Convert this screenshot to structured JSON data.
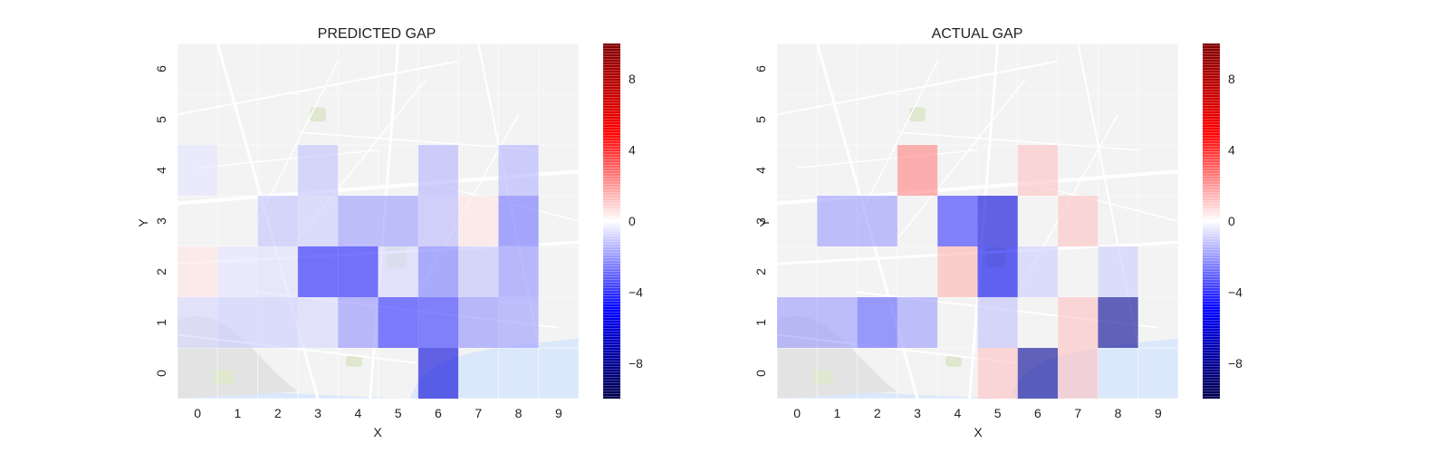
{
  "chart_data": [
    {
      "type": "heatmap",
      "title": "PREDICTED GAP",
      "xlabel": "X",
      "ylabel": "Y",
      "x_ticks": [
        "0",
        "1",
        "2",
        "3",
        "4",
        "5",
        "6",
        "7",
        "8",
        "9"
      ],
      "y_ticks": [
        "0",
        "1",
        "2",
        "3",
        "4",
        "5",
        "6"
      ],
      "xlim": [
        -0.5,
        9.5
      ],
      "ylim": [
        -0.5,
        6.5
      ],
      "background": "street map",
      "colormap": "seismic",
      "colorbar_ticks": [
        "−8",
        "−4",
        "0",
        "4",
        "8"
      ],
      "clim": [
        -10,
        10
      ],
      "cells": [
        {
          "x": 0,
          "y": 1,
          "value": -0.8
        },
        {
          "x": 1,
          "y": 1,
          "value": -1.0
        },
        {
          "x": 2,
          "y": 1,
          "value": -1.0
        },
        {
          "x": 3,
          "y": 1,
          "value": -0.8
        },
        {
          "x": 4,
          "y": 1,
          "value": -2.2
        },
        {
          "x": 5,
          "y": 1,
          "value": -4.2
        },
        {
          "x": 6,
          "y": 1,
          "value": -4.0
        },
        {
          "x": 7,
          "y": 1,
          "value": -2.2
        },
        {
          "x": 8,
          "y": 1,
          "value": -2.0
        },
        {
          "x": 6,
          "y": 0,
          "value": -6.0
        },
        {
          "x": 0,
          "y": 2,
          "value": 0.5
        },
        {
          "x": 1,
          "y": 2,
          "value": -0.5
        },
        {
          "x": 2,
          "y": 2,
          "value": -0.6
        },
        {
          "x": 3,
          "y": 2,
          "value": -4.5
        },
        {
          "x": 4,
          "y": 2,
          "value": -4.5
        },
        {
          "x": 5,
          "y": 2,
          "value": -0.8
        },
        {
          "x": 6,
          "y": 2,
          "value": -2.6
        },
        {
          "x": 7,
          "y": 2,
          "value": -1.2
        },
        {
          "x": 8,
          "y": 2,
          "value": -2.2
        },
        {
          "x": 2,
          "y": 3,
          "value": -1.2
        },
        {
          "x": 3,
          "y": 3,
          "value": -1.0
        },
        {
          "x": 4,
          "y": 3,
          "value": -2.0
        },
        {
          "x": 5,
          "y": 3,
          "value": -2.0
        },
        {
          "x": 6,
          "y": 3,
          "value": -1.4
        },
        {
          "x": 7,
          "y": 3,
          "value": 0.5
        },
        {
          "x": 8,
          "y": 3,
          "value": -2.8
        },
        {
          "x": 0,
          "y": 4,
          "value": -0.5
        },
        {
          "x": 3,
          "y": 4,
          "value": -1.2
        },
        {
          "x": 6,
          "y": 4,
          "value": -1.5
        },
        {
          "x": 8,
          "y": 4,
          "value": -1.5
        }
      ]
    },
    {
      "type": "heatmap",
      "title": "ACTUAL GAP",
      "xlabel": "X",
      "ylabel": "Y",
      "x_ticks": [
        "0",
        "1",
        "2",
        "3",
        "4",
        "5",
        "6",
        "7",
        "8",
        "9"
      ],
      "y_ticks": [
        "0",
        "1",
        "2",
        "3",
        "4",
        "5",
        "6"
      ],
      "xlim": [
        -0.5,
        9.5
      ],
      "ylim": [
        -0.5,
        6.5
      ],
      "background": "street map",
      "colormap": "seismic",
      "colorbar_ticks": [
        "−8",
        "−4",
        "0",
        "4",
        "8"
      ],
      "clim": [
        -10,
        10
      ],
      "cells": [
        {
          "x": 0,
          "y": 1,
          "value": -2.0
        },
        {
          "x": 1,
          "y": 1,
          "value": -2.0
        },
        {
          "x": 2,
          "y": 1,
          "value": -3.2
        },
        {
          "x": 3,
          "y": 1,
          "value": -2.0
        },
        {
          "x": 5,
          "y": 1,
          "value": -1.2
        },
        {
          "x": 7,
          "y": 1,
          "value": 1.2
        },
        {
          "x": 8,
          "y": 1,
          "value": -8.0
        },
        {
          "x": 5,
          "y": 0,
          "value": 1.2
        },
        {
          "x": 6,
          "y": 0,
          "value": -8.0
        },
        {
          "x": 7,
          "y": 0,
          "value": 1.2
        },
        {
          "x": 4,
          "y": 2,
          "value": 1.5
        },
        {
          "x": 5,
          "y": 2,
          "value": -5.5
        },
        {
          "x": 6,
          "y": 2,
          "value": -1.0
        },
        {
          "x": 8,
          "y": 2,
          "value": -1.0
        },
        {
          "x": 1,
          "y": 3,
          "value": -2.0
        },
        {
          "x": 2,
          "y": 3,
          "value": -2.0
        },
        {
          "x": 4,
          "y": 3,
          "value": -4.0
        },
        {
          "x": 5,
          "y": 3,
          "value": -6.0
        },
        {
          "x": 7,
          "y": 3,
          "value": 1.2
        },
        {
          "x": 3,
          "y": 4,
          "value": 2.5
        },
        {
          "x": 6,
          "y": 4,
          "value": 1.2
        }
      ]
    }
  ]
}
